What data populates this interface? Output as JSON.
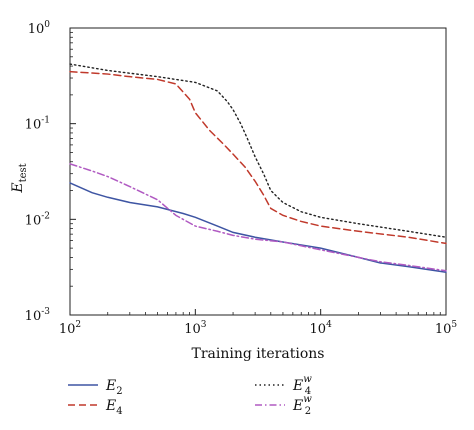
{
  "chart_data": {
    "type": "line",
    "title": "",
    "xlabel": "Training iterations",
    "ylabel": {
      "base": "E",
      "sub": "test"
    },
    "x_scale": "log",
    "y_scale": "log",
    "xlim": [
      100,
      100000
    ],
    "ylim": [
      0.001,
      1
    ],
    "x_ticks": [
      {
        "value": 100,
        "base": "10",
        "exp": "2"
      },
      {
        "value": 1000,
        "base": "10",
        "exp": "3"
      },
      {
        "value": 10000,
        "base": "10",
        "exp": "4"
      },
      {
        "value": 100000,
        "base": "10",
        "exp": "5"
      }
    ],
    "y_ticks": [
      {
        "value": 1,
        "base": "10",
        "exp": "0"
      },
      {
        "value": 0.1,
        "base": "10",
        "exp": "-1"
      },
      {
        "value": 0.01,
        "base": "10",
        "exp": "-2"
      },
      {
        "value": 0.001,
        "base": "10",
        "exp": "-3"
      }
    ],
    "grid": false,
    "legend_position": "bottom",
    "series": [
      {
        "name": "E_2",
        "label": {
          "base": "E",
          "sub": "2",
          "sup": ""
        },
        "color": "#3e55a3",
        "style": "solid",
        "x": [
          100,
          150,
          200,
          300,
          500,
          800,
          1000,
          1500,
          2000,
          3000,
          5000,
          7000,
          10000,
          20000,
          30000,
          50000,
          100000
        ],
        "y": [
          0.024,
          0.019,
          0.017,
          0.015,
          0.0135,
          0.0115,
          0.0105,
          0.0085,
          0.0073,
          0.0065,
          0.0058,
          0.0054,
          0.005,
          0.004,
          0.0035,
          0.0032,
          0.0028
        ]
      },
      {
        "name": "E_4",
        "label": {
          "base": "E",
          "sub": "4",
          "sup": ""
        },
        "color": "#c0392b",
        "style": "dashed",
        "x": [
          100,
          200,
          300,
          500,
          700,
          900,
          1000,
          1300,
          1700,
          2000,
          2500,
          3000,
          3500,
          4000,
          5000,
          7000,
          10000,
          20000,
          50000,
          100000
        ],
        "y": [
          0.35,
          0.33,
          0.31,
          0.29,
          0.26,
          0.18,
          0.13,
          0.085,
          0.06,
          0.048,
          0.035,
          0.025,
          0.018,
          0.013,
          0.011,
          0.0095,
          0.0085,
          0.0075,
          0.0065,
          0.0056
        ]
      },
      {
        "name": "E_4^w",
        "label": {
          "base": "E",
          "sub": "4",
          "sup": "w"
        },
        "color": "#222222",
        "style": "dotted",
        "x": [
          100,
          200,
          500,
          1000,
          1500,
          1800,
          2000,
          2300,
          2600,
          3000,
          3500,
          4000,
          5000,
          7000,
          10000,
          20000,
          50000,
          100000
        ],
        "y": [
          0.42,
          0.36,
          0.31,
          0.27,
          0.22,
          0.17,
          0.14,
          0.1,
          0.07,
          0.045,
          0.03,
          0.02,
          0.015,
          0.012,
          0.0105,
          0.009,
          0.0075,
          0.0065
        ]
      },
      {
        "name": "E_2^w",
        "label": {
          "base": "E",
          "sub": "2",
          "sup": "w"
        },
        "color": "#b05ac2",
        "style": "dashdot",
        "x": [
          100,
          150,
          200,
          300,
          500,
          700,
          1000,
          1500,
          2000,
          3000,
          5000,
          10000,
          20000,
          30000,
          50000,
          100000
        ],
        "y": [
          0.038,
          0.032,
          0.028,
          0.022,
          0.016,
          0.011,
          0.0085,
          0.0075,
          0.0068,
          0.0062,
          0.0058,
          0.0048,
          0.004,
          0.0036,
          0.0033,
          0.0029
        ]
      }
    ]
  }
}
